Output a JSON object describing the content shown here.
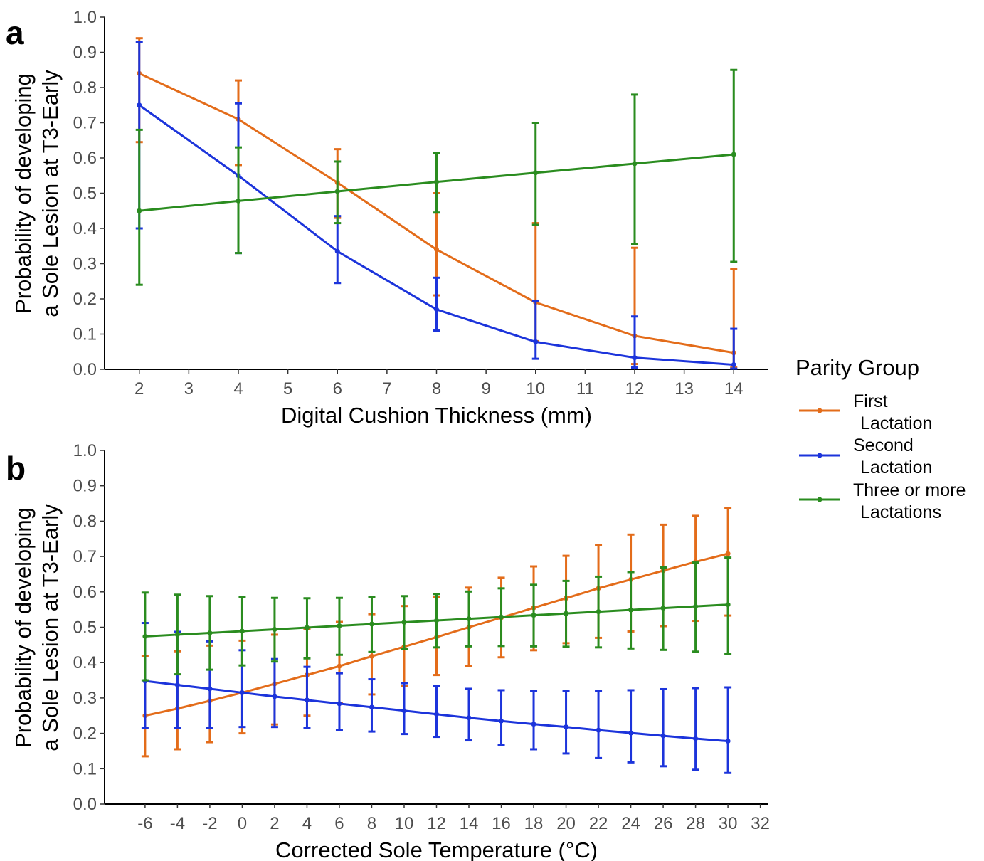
{
  "legend": {
    "title": "Parity Group",
    "entries": [
      {
        "line1": "First",
        "line2": "Lactation",
        "color": "#E36C1A"
      },
      {
        "line1": "Second",
        "line2": "Lactation",
        "color": "#1C34DB"
      },
      {
        "line1": "Three or more",
        "line2": "Lactations",
        "color": "#2A8C1F"
      }
    ]
  },
  "chart_data": [
    {
      "panel": "a",
      "type": "line",
      "xlabel": "Digital Cushion Thickness (mm)",
      "ylabel": [
        "Probability of developing",
        "a Sole Lesion at T3-Early"
      ],
      "xlim": [
        1.3,
        14.7
      ],
      "ylim": [
        0,
        1
      ],
      "xticks": [
        2,
        3,
        4,
        5,
        6,
        7,
        8,
        9,
        10,
        11,
        12,
        13,
        14
      ],
      "yticks": [
        0,
        0.1,
        0.2,
        0.3,
        0.4,
        0.5,
        0.6,
        0.7,
        0.8,
        0.9,
        1
      ],
      "ytick_labels": [
        "0.0",
        "0.1",
        "0.2",
        "0.3",
        "0.4",
        "0.5",
        "0.6",
        "0.7",
        "0.8",
        "0.9",
        "1.0"
      ],
      "series": [
        {
          "name": "First Lactation",
          "color": "#E36C1A",
          "x": [
            2,
            4,
            6,
            8,
            10,
            12,
            14
          ],
          "y": [
            0.84,
            0.71,
            0.53,
            0.34,
            0.19,
            0.095,
            0.047
          ],
          "lower": [
            0.645,
            0.58,
            0.43,
            0.21,
            0.08,
            0.015,
            0.005
          ],
          "upper": [
            0.94,
            0.82,
            0.625,
            0.5,
            0.415,
            0.345,
            0.285
          ]
        },
        {
          "name": "Second Lactation",
          "color": "#1C34DB",
          "x": [
            2,
            4,
            6,
            8,
            10,
            12,
            14
          ],
          "y": [
            0.75,
            0.55,
            0.335,
            0.17,
            0.078,
            0.033,
            0.013
          ],
          "lower": [
            0.4,
            0.33,
            0.245,
            0.11,
            0.03,
            0.005,
            0.002
          ],
          "upper": [
            0.93,
            0.755,
            0.435,
            0.26,
            0.195,
            0.15,
            0.115
          ]
        },
        {
          "name": "Three or more Lactations",
          "color": "#2A8C1F",
          "x": [
            2,
            4,
            6,
            8,
            10,
            12,
            14
          ],
          "y": [
            0.45,
            0.478,
            0.505,
            0.532,
            0.558,
            0.584,
            0.61
          ],
          "lower": [
            0.24,
            0.33,
            0.415,
            0.445,
            0.41,
            0.355,
            0.305
          ],
          "upper": [
            0.68,
            0.63,
            0.59,
            0.615,
            0.7,
            0.78,
            0.85
          ]
        }
      ]
    },
    {
      "panel": "b",
      "type": "line",
      "xlabel": "Corrected Sole Temperature (°C)",
      "ylabel": [
        "Probability of developing",
        "a Sole Lesion at T3-Early"
      ],
      "xlim": [
        -8.5,
        32.5
      ],
      "ylim": [
        0,
        1
      ],
      "xticks": [
        -6,
        -4,
        -2,
        0,
        2,
        4,
        6,
        8,
        10,
        12,
        14,
        16,
        18,
        20,
        22,
        24,
        26,
        28,
        30,
        32
      ],
      "yticks": [
        0,
        0.1,
        0.2,
        0.3,
        0.4,
        0.5,
        0.6,
        0.7,
        0.8,
        0.9,
        1
      ],
      "ytick_labels": [
        "0.0",
        "0.1",
        "0.2",
        "0.3",
        "0.4",
        "0.5",
        "0.6",
        "0.7",
        "0.8",
        "0.9",
        "1.0"
      ],
      "series": [
        {
          "name": "First Lactation",
          "color": "#E36C1A",
          "x": [
            -6,
            -4,
            -2,
            0,
            2,
            4,
            6,
            8,
            10,
            12,
            14,
            16,
            18,
            20,
            22,
            24,
            26,
            28,
            30
          ],
          "y": [
            0.25,
            0.27,
            0.292,
            0.315,
            0.34,
            0.365,
            0.39,
            0.418,
            0.445,
            0.472,
            0.5,
            0.527,
            0.555,
            0.582,
            0.61,
            0.635,
            0.66,
            0.685,
            0.708
          ],
          "lower": [
            0.135,
            0.155,
            0.175,
            0.2,
            0.225,
            0.25,
            0.285,
            0.31,
            0.335,
            0.365,
            0.39,
            0.415,
            0.435,
            0.455,
            0.47,
            0.488,
            0.503,
            0.518,
            0.533
          ],
          "upper": [
            0.418,
            0.432,
            0.448,
            0.462,
            0.479,
            0.495,
            0.515,
            0.537,
            0.56,
            0.585,
            0.612,
            0.64,
            0.672,
            0.702,
            0.733,
            0.762,
            0.79,
            0.815,
            0.838
          ]
        },
        {
          "name": "Second Lactation",
          "color": "#1C34DB",
          "x": [
            -6,
            -4,
            -2,
            0,
            2,
            4,
            6,
            8,
            10,
            12,
            14,
            16,
            18,
            20,
            22,
            24,
            26,
            28,
            30
          ],
          "y": [
            0.348,
            0.337,
            0.326,
            0.315,
            0.304,
            0.294,
            0.284,
            0.274,
            0.264,
            0.254,
            0.244,
            0.235,
            0.226,
            0.218,
            0.209,
            0.201,
            0.193,
            0.185,
            0.178
          ],
          "lower": [
            0.215,
            0.215,
            0.215,
            0.218,
            0.218,
            0.215,
            0.21,
            0.205,
            0.198,
            0.19,
            0.18,
            0.168,
            0.155,
            0.143,
            0.13,
            0.118,
            0.107,
            0.097,
            0.088
          ],
          "upper": [
            0.512,
            0.487,
            0.46,
            0.435,
            0.41,
            0.388,
            0.37,
            0.353,
            0.342,
            0.333,
            0.326,
            0.322,
            0.32,
            0.32,
            0.32,
            0.322,
            0.325,
            0.328,
            0.33
          ]
        },
        {
          "name": "Three or more Lactations",
          "color": "#2A8C1F",
          "x": [
            -6,
            -4,
            -2,
            0,
            2,
            4,
            6,
            8,
            10,
            12,
            14,
            16,
            18,
            20,
            22,
            24,
            26,
            28,
            30
          ],
          "y": [
            0.474,
            0.479,
            0.484,
            0.489,
            0.494,
            0.499,
            0.504,
            0.509,
            0.514,
            0.519,
            0.524,
            0.529,
            0.534,
            0.539,
            0.544,
            0.549,
            0.554,
            0.559,
            0.564
          ],
          "lower": [
            0.35,
            0.367,
            0.38,
            0.392,
            0.403,
            0.412,
            0.422,
            0.43,
            0.438,
            0.443,
            0.446,
            0.447,
            0.446,
            0.445,
            0.443,
            0.44,
            0.436,
            0.431,
            0.425
          ],
          "upper": [
            0.598,
            0.592,
            0.588,
            0.585,
            0.583,
            0.582,
            0.583,
            0.585,
            0.588,
            0.594,
            0.601,
            0.61,
            0.62,
            0.631,
            0.643,
            0.656,
            0.669,
            0.683,
            0.697
          ]
        }
      ]
    }
  ]
}
